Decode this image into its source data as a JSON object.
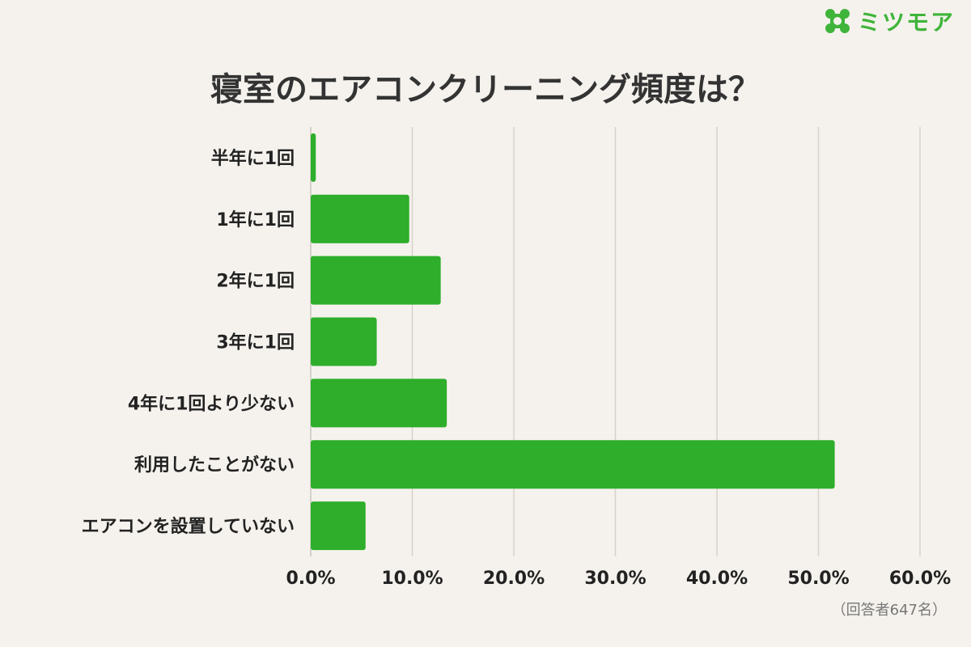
{
  "brand": {
    "name": "ミツモア",
    "logo_icon": "mitsumore-logo-icon",
    "color": "#3fb43a"
  },
  "footnote": "（回答者647名）",
  "chart_data": {
    "type": "bar",
    "orientation": "horizontal",
    "title": "寝室のエアコンクリーニング頻度は？",
    "categories": [
      "半年に1回",
      "1年に1回",
      "2年に1回",
      "3年に1回",
      "4年に1回より少ない",
      "利用したことがない",
      "エアコンを設置していない"
    ],
    "values": [
      0.5,
      9.7,
      12.8,
      6.5,
      13.4,
      51.6,
      5.4
    ],
    "xlim": [
      0,
      60
    ],
    "xticks": [
      "0.0%",
      "10.0%",
      "20.0%",
      "30.0%",
      "40.0%",
      "50.0%",
      "60.0%"
    ],
    "grid": true,
    "bar_color": "#2eae2b",
    "grid_color": "#d6d2cc"
  }
}
